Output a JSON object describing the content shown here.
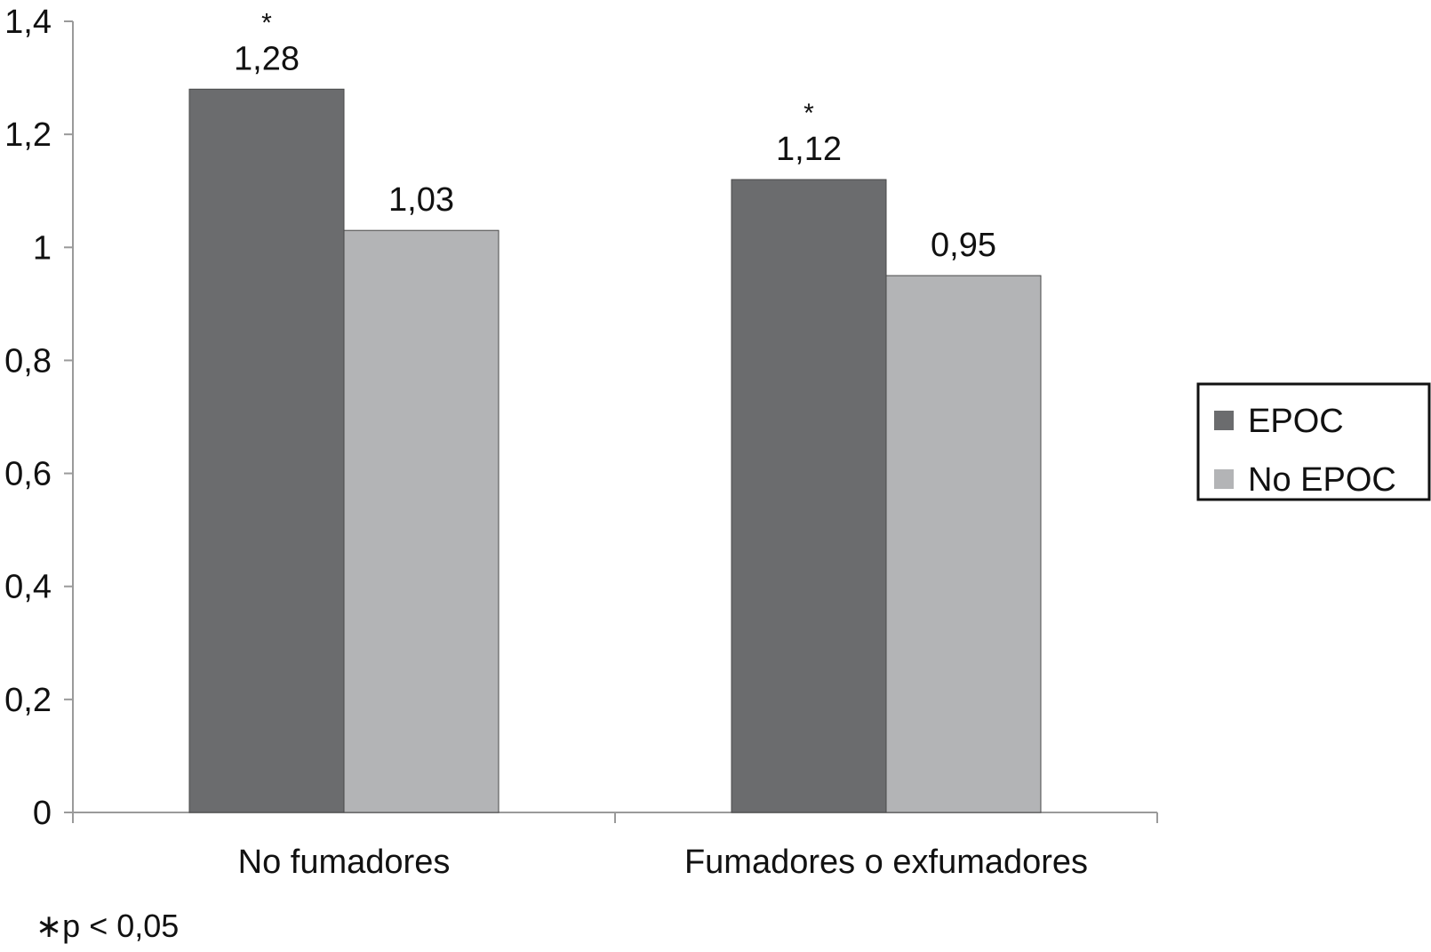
{
  "chart_data": {
    "type": "bar",
    "categories": [
      "No fumadores",
      "Fumadores o exfumadores"
    ],
    "series": [
      {
        "name": "EPOC",
        "values": [
          1.28,
          1.12
        ],
        "value_labels": [
          "1,28",
          "1,12"
        ],
        "significance": [
          "*",
          "*"
        ],
        "color": "#6b6c6e"
      },
      {
        "name": "No EPOC",
        "values": [
          1.03,
          0.95
        ],
        "value_labels": [
          "1,03",
          "0,95"
        ],
        "significance": [
          "",
          ""
        ],
        "color": "#b3b4b6"
      }
    ],
    "ylim": [
      0,
      1.4
    ],
    "yticks": [
      0,
      0.2,
      0.4,
      0.6,
      0.8,
      1,
      1.2,
      1.4
    ],
    "ytick_labels": [
      "0",
      "0,2",
      "0,4",
      "0,6",
      "0,8",
      "1",
      "1,2",
      "1,4"
    ],
    "xlabel": "",
    "ylabel": "",
    "title": "",
    "grid": false,
    "legend_position": "right",
    "axis_color": "#9a9a9a",
    "footnote": "∗p < 0,05"
  }
}
